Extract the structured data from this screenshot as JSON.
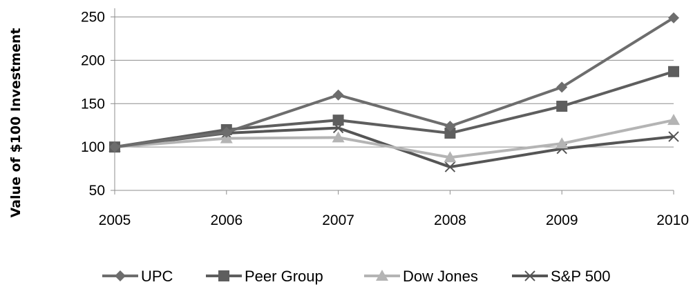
{
  "chart_data": {
    "type": "line",
    "title": "",
    "xlabel": "",
    "ylabel": "Value of $100 Investment",
    "x": [
      "2005",
      "2006",
      "2007",
      "2008",
      "2009",
      "2010"
    ],
    "ylim": [
      50,
      260
    ],
    "yticks": [
      "50",
      "100",
      "150",
      "200",
      "250"
    ],
    "grid": "horizontal",
    "legend": "bottom",
    "series": [
      {
        "name": "UPC",
        "marker": "diamond",
        "color": "#6d6d6d",
        "values": [
          100,
          117,
          160,
          124,
          169,
          249
        ]
      },
      {
        "name": "Peer Group",
        "marker": "square",
        "color": "#5e5e5e",
        "values": [
          100,
          120,
          131,
          116,
          147,
          187
        ]
      },
      {
        "name": "Dow Jones",
        "marker": "triangle",
        "color": "#b4b4b4",
        "values": [
          100,
          110,
          111,
          88,
          104,
          131
        ]
      },
      {
        "name": "S&P 500",
        "marker": "x",
        "color": "#555555",
        "values": [
          100,
          116,
          122,
          77,
          98,
          112
        ]
      }
    ]
  }
}
